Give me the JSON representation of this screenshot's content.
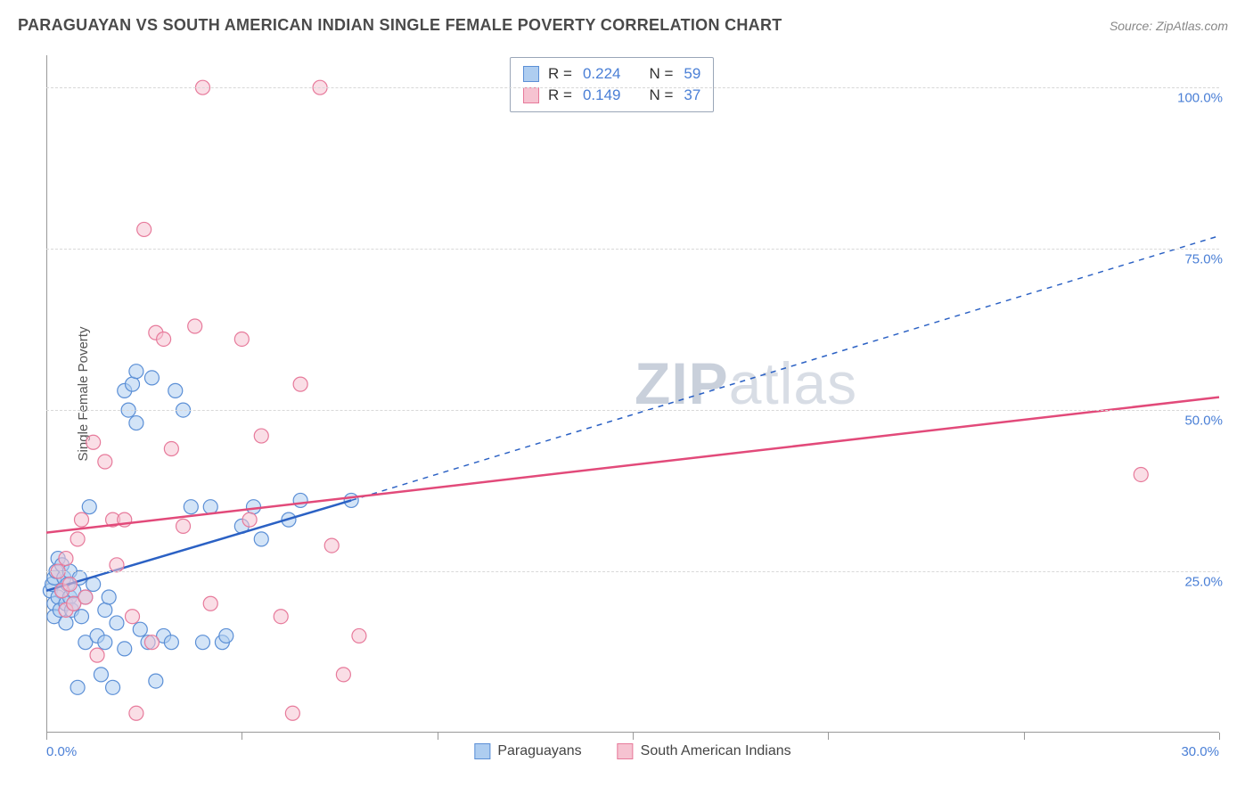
{
  "header": {
    "title": "PARAGUAYAN VS SOUTH AMERICAN INDIAN SINGLE FEMALE POVERTY CORRELATION CHART",
    "source": "Source: ZipAtlas.com"
  },
  "chart": {
    "type": "scatter",
    "ylabel": "Single Female Poverty",
    "xlim": [
      0,
      30
    ],
    "ylim": [
      0,
      105
    ],
    "yticks": [
      25,
      50,
      75,
      100
    ],
    "ytick_labels": [
      "25.0%",
      "50.0%",
      "75.0%",
      "100.0%"
    ],
    "xticks": [
      0,
      5,
      10,
      15,
      20,
      25,
      30
    ],
    "xtick_labels_shown": {
      "0": "0.0%",
      "30": "30.0%"
    },
    "background_color": "#ffffff",
    "grid_color": "#d8d8d8",
    "axis_color": "#999999",
    "tick_label_color": "#4a7fd6",
    "marker_radius": 8,
    "marker_opacity": 0.55,
    "watermark": "ZIPatlas",
    "series": [
      {
        "name": "Paraguayans",
        "color_fill": "#aecdf0",
        "color_stroke": "#5b8fd6",
        "trend_color": "#2b61c4",
        "trend_solid": {
          "x1": 0,
          "y1": 22,
          "x2": 7.8,
          "y2": 36
        },
        "trend_dashed": {
          "x1": 7.8,
          "y1": 36,
          "x2": 30,
          "y2": 77
        },
        "points": [
          [
            0.1,
            22
          ],
          [
            0.15,
            23
          ],
          [
            0.2,
            24
          ],
          [
            0.2,
            20
          ],
          [
            0.2,
            18
          ],
          [
            0.25,
            25
          ],
          [
            0.3,
            21
          ],
          [
            0.3,
            27
          ],
          [
            0.35,
            19
          ],
          [
            0.4,
            22
          ],
          [
            0.4,
            26
          ],
          [
            0.45,
            24
          ],
          [
            0.5,
            20
          ],
          [
            0.5,
            17
          ],
          [
            0.55,
            23
          ],
          [
            0.6,
            25
          ],
          [
            0.6,
            21
          ],
          [
            0.65,
            19
          ],
          [
            0.7,
            20
          ],
          [
            0.7,
            22
          ],
          [
            0.8,
            7
          ],
          [
            0.85,
            24
          ],
          [
            0.9,
            18
          ],
          [
            1.0,
            14
          ],
          [
            1.0,
            21
          ],
          [
            1.1,
            35
          ],
          [
            1.2,
            23
          ],
          [
            1.3,
            15
          ],
          [
            1.4,
            9
          ],
          [
            1.5,
            19
          ],
          [
            1.5,
            14
          ],
          [
            1.6,
            21
          ],
          [
            1.7,
            7
          ],
          [
            1.8,
            17
          ],
          [
            2.0,
            13
          ],
          [
            2.0,
            53
          ],
          [
            2.1,
            50
          ],
          [
            2.2,
            54
          ],
          [
            2.3,
            48
          ],
          [
            2.3,
            56
          ],
          [
            2.4,
            16
          ],
          [
            2.6,
            14
          ],
          [
            2.7,
            55
          ],
          [
            2.8,
            8
          ],
          [
            3.0,
            15
          ],
          [
            3.2,
            14
          ],
          [
            3.3,
            53
          ],
          [
            3.5,
            50
          ],
          [
            3.7,
            35
          ],
          [
            4.0,
            14
          ],
          [
            4.2,
            35
          ],
          [
            4.5,
            14
          ],
          [
            4.6,
            15
          ],
          [
            5.0,
            32
          ],
          [
            5.3,
            35
          ],
          [
            5.5,
            30
          ],
          [
            6.2,
            33
          ],
          [
            6.5,
            36
          ],
          [
            7.8,
            36
          ]
        ]
      },
      {
        "name": "South American Indians",
        "color_fill": "#f6c3d1",
        "color_stroke": "#e77a9b",
        "trend_color": "#e24a7a",
        "trend_solid": {
          "x1": 0,
          "y1": 31,
          "x2": 30,
          "y2": 52
        },
        "trend_dashed": null,
        "points": [
          [
            0.3,
            25
          ],
          [
            0.4,
            22
          ],
          [
            0.5,
            19
          ],
          [
            0.5,
            27
          ],
          [
            0.6,
            23
          ],
          [
            0.7,
            20
          ],
          [
            0.8,
            30
          ],
          [
            0.9,
            33
          ],
          [
            1.0,
            21
          ],
          [
            1.2,
            45
          ],
          [
            1.3,
            12
          ],
          [
            1.5,
            42
          ],
          [
            1.7,
            33
          ],
          [
            1.8,
            26
          ],
          [
            2.0,
            33
          ],
          [
            2.2,
            18
          ],
          [
            2.3,
            3
          ],
          [
            2.5,
            78
          ],
          [
            2.7,
            14
          ],
          [
            2.8,
            62
          ],
          [
            3.0,
            61
          ],
          [
            3.2,
            44
          ],
          [
            3.5,
            32
          ],
          [
            3.8,
            63
          ],
          [
            4.0,
            100
          ],
          [
            4.2,
            20
          ],
          [
            5.0,
            61
          ],
          [
            5.2,
            33
          ],
          [
            5.5,
            46
          ],
          [
            6.0,
            18
          ],
          [
            6.3,
            3
          ],
          [
            6.5,
            54
          ],
          [
            7.0,
            100
          ],
          [
            7.3,
            29
          ],
          [
            7.6,
            9
          ],
          [
            8.0,
            15
          ],
          [
            28.0,
            40
          ]
        ]
      }
    ],
    "stats_box": {
      "rows": [
        {
          "swatch_fill": "#aecdf0",
          "swatch_stroke": "#5b8fd6",
          "r_label": "R =",
          "r_val": "0.224",
          "n_label": "N =",
          "n_val": "59"
        },
        {
          "swatch_fill": "#f6c3d1",
          "swatch_stroke": "#e77a9b",
          "r_label": "R =",
          "r_val": "0.149",
          "n_label": "N =",
          "n_val": "37"
        }
      ]
    },
    "legend": [
      {
        "swatch_fill": "#aecdf0",
        "swatch_stroke": "#5b8fd6",
        "label": "Paraguayans"
      },
      {
        "swatch_fill": "#f6c3d1",
        "swatch_stroke": "#e77a9b",
        "label": "South American Indians"
      }
    ]
  }
}
